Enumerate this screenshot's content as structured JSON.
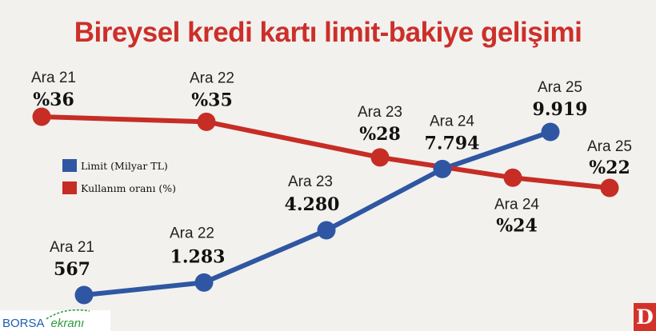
{
  "title": "Bireysel kredi kartı limit-bakiye gelişimi",
  "logo": {
    "part1": "BORSA",
    "part2": "ekranı",
    "badge": "D"
  },
  "colors": {
    "limit": "#2f56a2",
    "usage": "#c62d25",
    "title": "#cc2f2a"
  },
  "chart_data": {
    "type": "line",
    "title": "Bireysel kredi kartı limit-bakiye gelişimi",
    "grid": false,
    "legend_position": "left-center",
    "series": [
      {
        "name": "Limit (Milyar TL)",
        "color": "#2f56a2",
        "points": [
          {
            "category": "Ara 21",
            "value": 567,
            "label": "567"
          },
          {
            "category": "Ara 22",
            "value": 1283,
            "label": "1.283"
          },
          {
            "category": "Ara 23",
            "value": 4280,
            "label": "4.280"
          },
          {
            "category": "Ara 24",
            "value": 7794,
            "label": "7.794"
          },
          {
            "category": "Ara 25",
            "value": 9919,
            "label": "9.919"
          }
        ]
      },
      {
        "name": "Kullanım oranı (%)",
        "color": "#c62d25",
        "points": [
          {
            "category": "Ara 21",
            "value": 36,
            "label": "%36"
          },
          {
            "category": "Ara 22",
            "value": 35,
            "label": "%35"
          },
          {
            "category": "Ara 23",
            "value": 28,
            "label": "%28"
          },
          {
            "category": "Ara 24",
            "value": 24,
            "label": "%24"
          },
          {
            "category": "Ara 25",
            "value": 22,
            "label": "%22"
          }
        ]
      }
    ]
  }
}
